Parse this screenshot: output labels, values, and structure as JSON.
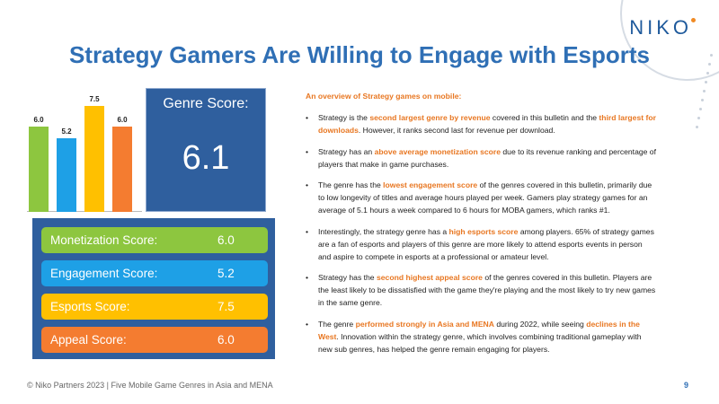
{
  "brand": {
    "logo_text": "NIKO"
  },
  "title": "Strategy Gamers Are Willing to Engage with Esports",
  "chart_data": {
    "type": "bar",
    "title": "",
    "categories": [
      "Monetization",
      "Engagement",
      "Esports",
      "Appeal"
    ],
    "values": [
      6.0,
      5.2,
      7.5,
      6.0
    ],
    "labels": [
      "6.0",
      "5.2",
      "7.5",
      "6.0"
    ],
    "colors": [
      "#8dc63f",
      "#1ea0e6",
      "#ffc000",
      "#f47c30"
    ],
    "ylim": [
      0,
      8.5
    ],
    "xlabel": "",
    "ylabel": ""
  },
  "genre_score": {
    "label": "Genre Score:",
    "value": "6.1"
  },
  "scores": [
    {
      "label": "Monetization Score:",
      "value": "6.0",
      "color": "#8dc63f"
    },
    {
      "label": "Engagement Score:",
      "value": "5.2",
      "color": "#1ea0e6"
    },
    {
      "label": "Esports Score:",
      "value": "7.5",
      "color": "#ffc000"
    },
    {
      "label": "Appeal Score:",
      "value": "6.0",
      "color": "#f47c30"
    }
  ],
  "overview": {
    "intro": "An overview of Strategy games on mobile:",
    "bullet_symbol": "•",
    "bullets": [
      [
        {
          "t": "Strategy is the ",
          "h": false
        },
        {
          "t": "second largest genre by revenue",
          "h": true
        },
        {
          "t": " covered in this bulletin and the ",
          "h": false
        },
        {
          "t": "third largest for downloads",
          "h": true
        },
        {
          "t": ". However, it ranks second last for revenue per download.",
          "h": false
        }
      ],
      [
        {
          "t": "Strategy has an ",
          "h": false
        },
        {
          "t": "above average monetization score",
          "h": true
        },
        {
          "t": " due to its revenue ranking and percentage of players that make in game purchases.",
          "h": false
        }
      ],
      [
        {
          "t": "The genre has the ",
          "h": false
        },
        {
          "t": "lowest engagement score",
          "h": true
        },
        {
          "t": " of the genres covered in this bulletin, primarily due to low longevity of titles and average hours played per week. Gamers play strategy games for an average of 5.1 hours a week compared to 6 hours for MOBA gamers, which ranks #1.",
          "h": false
        }
      ],
      [
        {
          "t": "Interestingly, the strategy genre has a ",
          "h": false
        },
        {
          "t": "high esports score",
          "h": true
        },
        {
          "t": " among players. 65% of strategy games are a fan of esports and players of this genre are more likely to attend esports events in person and aspire to compete in esports at a professional or amateur level.",
          "h": false
        }
      ],
      [
        {
          "t": "Strategy has the ",
          "h": false
        },
        {
          "t": "second highest appeal score",
          "h": true
        },
        {
          "t": " of the genres covered in this bulletin. Players are the least likely to be dissatisfied with the game they're playing and the most likely to try new games in the same genre.",
          "h": false
        }
      ],
      [
        {
          "t": "The genre ",
          "h": false
        },
        {
          "t": "performed strongly in Asia and MENA",
          "h": true
        },
        {
          "t": " during 2022, while seeing ",
          "h": false
        },
        {
          "t": "declines in the West",
          "h": true
        },
        {
          "t": ". Innovation within the strategy genre, which involves combining traditional gameplay with new sub genres, has helped the genre remain engaging for players.",
          "h": false
        }
      ]
    ]
  },
  "footer": {
    "text": "© Niko Partners 2023 | Five Mobile Game Genres in Asia and MENA",
    "page_number": "9"
  }
}
